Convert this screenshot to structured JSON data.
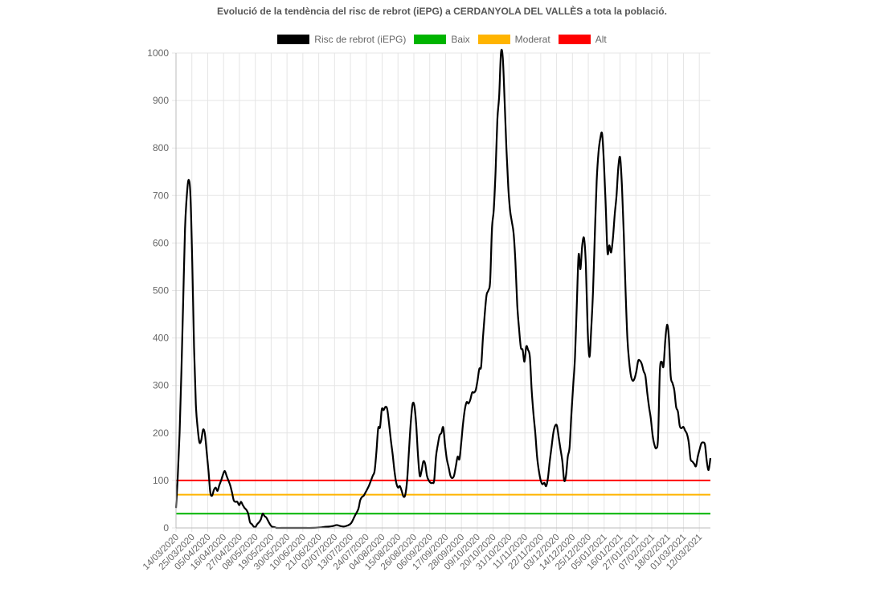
{
  "chart_data": {
    "type": "line",
    "title": "Evolució de la tendència del risc de rebrot (iEPG) a CERDANYOLA DEL VALLÈS a tota la població.",
    "ylim": [
      0,
      1000
    ],
    "yticks": [
      "0",
      "100",
      "200",
      "300",
      "400",
      "500",
      "600",
      "700",
      "800",
      "900",
      "1000"
    ],
    "x_labels": [
      "14/03/2020",
      "25/03/2020",
      "05/04/2020",
      "16/04/2020",
      "27/04/2020",
      "08/05/2020",
      "19/05/2020",
      "30/05/2020",
      "10/06/2020",
      "21/06/2020",
      "02/07/2020",
      "13/07/2020",
      "24/07/2020",
      "04/08/2020",
      "15/08/2020",
      "26/08/2020",
      "06/09/2020",
      "17/09/2020",
      "28/09/2020",
      "09/10/2020",
      "20/10/2020",
      "31/10/2020",
      "11/11/2020",
      "22/11/2020",
      "03/12/2020",
      "14/12/2020",
      "25/12/2020",
      "05/01/2021",
      "16/01/2021",
      "27/01/2021",
      "07/02/2021",
      "18/02/2021",
      "01/03/2021",
      "12/03/2021"
    ],
    "grid": true,
    "legend_position": "top",
    "series": [
      {
        "name": "Risc de rebrot (iEPG)",
        "color": "#000000",
        "values": [
          [
            0,
            42
          ],
          [
            1,
            110
          ],
          [
            2,
            200
          ],
          [
            3,
            330
          ],
          [
            4,
            480
          ],
          [
            5,
            630
          ],
          [
            6,
            700
          ],
          [
            7,
            733
          ],
          [
            8,
            700
          ],
          [
            9,
            560
          ],
          [
            10,
            380
          ],
          [
            11,
            260
          ],
          [
            12,
            210
          ],
          [
            13,
            180
          ],
          [
            14,
            185
          ],
          [
            15,
            207
          ],
          [
            16,
            198
          ],
          [
            17,
            160
          ],
          [
            18,
            120
          ],
          [
            19,
            75
          ],
          [
            20,
            68
          ],
          [
            21,
            80
          ],
          [
            22,
            85
          ],
          [
            23,
            78
          ],
          [
            24,
            90
          ],
          [
            25,
            100
          ],
          [
            26,
            112
          ],
          [
            27,
            120
          ],
          [
            28,
            110
          ],
          [
            29,
            100
          ],
          [
            30,
            90
          ],
          [
            31,
            75
          ],
          [
            32,
            58
          ],
          [
            33,
            55
          ],
          [
            34,
            55
          ],
          [
            35,
            48
          ],
          [
            36,
            55
          ],
          [
            37,
            48
          ],
          [
            38,
            42
          ],
          [
            39,
            38
          ],
          [
            40,
            30
          ],
          [
            41,
            12
          ],
          [
            42,
            8
          ],
          [
            43,
            3
          ],
          [
            44,
            2
          ],
          [
            45,
            8
          ],
          [
            46,
            12
          ],
          [
            47,
            18
          ],
          [
            48,
            30
          ],
          [
            49,
            25
          ],
          [
            50,
            22
          ],
          [
            51,
            15
          ],
          [
            52,
            8
          ],
          [
            53,
            3
          ],
          [
            54,
            2
          ],
          [
            55,
            1
          ],
          [
            56,
            0
          ],
          [
            60,
            0
          ],
          [
            65,
            0
          ],
          [
            70,
            0
          ],
          [
            75,
            0
          ],
          [
            80,
            1
          ],
          [
            82,
            2
          ],
          [
            85,
            3
          ],
          [
            87,
            4
          ],
          [
            89,
            6
          ],
          [
            91,
            4
          ],
          [
            93,
            3
          ],
          [
            95,
            5
          ],
          [
            97,
            10
          ],
          [
            99,
            25
          ],
          [
            101,
            40
          ],
          [
            102,
            58
          ],
          [
            103,
            65
          ],
          [
            104,
            68
          ],
          [
            105,
            75
          ],
          [
            106,
            82
          ],
          [
            107,
            90
          ],
          [
            108,
            100
          ],
          [
            109,
            110
          ],
          [
            110,
            120
          ],
          [
            111,
            160
          ],
          [
            112,
            210
          ],
          [
            113,
            212
          ],
          [
            114,
            250
          ],
          [
            115,
            248
          ],
          [
            116,
            255
          ],
          [
            117,
            250
          ],
          [
            118,
            220
          ],
          [
            119,
            185
          ],
          [
            120,
            155
          ],
          [
            121,
            120
          ],
          [
            122,
            95
          ],
          [
            123,
            85
          ],
          [
            124,
            88
          ],
          [
            125,
            78
          ],
          [
            126,
            66
          ],
          [
            127,
            70
          ],
          [
            128,
            100
          ],
          [
            129,
            160
          ],
          [
            130,
            220
          ],
          [
            131,
            260
          ],
          [
            132,
            258
          ],
          [
            133,
            220
          ],
          [
            134,
            155
          ],
          [
            135,
            110
          ],
          [
            136,
            120
          ],
          [
            137,
            140
          ],
          [
            138,
            135
          ],
          [
            139,
            110
          ],
          [
            140,
            100
          ],
          [
            141,
            95
          ],
          [
            142,
            95
          ],
          [
            143,
            100
          ],
          [
            144,
            150
          ],
          [
            145,
            175
          ],
          [
            146,
            195
          ],
          [
            147,
            200
          ],
          [
            148,
            212
          ],
          [
            149,
            175
          ],
          [
            150,
            145
          ],
          [
            151,
            128
          ],
          [
            152,
            110
          ],
          [
            153,
            105
          ],
          [
            154,
            110
          ],
          [
            155,
            130
          ],
          [
            156,
            150
          ],
          [
            157,
            145
          ],
          [
            158,
            180
          ],
          [
            159,
            220
          ],
          [
            160,
            250
          ],
          [
            161,
            265
          ],
          [
            162,
            262
          ],
          [
            163,
            270
          ],
          [
            164,
            285
          ],
          [
            165,
            285
          ],
          [
            166,
            290
          ],
          [
            167,
            310
          ],
          [
            168,
            335
          ],
          [
            169,
            340
          ],
          [
            170,
            400
          ],
          [
            171,
            450
          ],
          [
            172,
            490
          ],
          [
            173,
            500
          ],
          [
            174,
            520
          ],
          [
            175,
            630
          ],
          [
            176,
            670
          ],
          [
            177,
            750
          ],
          [
            178,
            860
          ],
          [
            179,
            910
          ],
          [
            180,
            1000
          ],
          [
            181,
            990
          ],
          [
            182,
            900
          ],
          [
            183,
            800
          ],
          [
            184,
            720
          ],
          [
            185,
            670
          ],
          [
            186,
            645
          ],
          [
            187,
            620
          ],
          [
            188,
            560
          ],
          [
            189,
            470
          ],
          [
            190,
            420
          ],
          [
            191,
            380
          ],
          [
            192,
            375
          ],
          [
            193,
            350
          ],
          [
            194,
            382
          ],
          [
            195,
            375
          ],
          [
            196,
            360
          ],
          [
            197,
            290
          ],
          [
            198,
            240
          ],
          [
            199,
            200
          ],
          [
            200,
            150
          ],
          [
            201,
            120
          ],
          [
            202,
            100
          ],
          [
            203,
            92
          ],
          [
            204,
            95
          ],
          [
            205,
            88
          ],
          [
            206,
            105
          ],
          [
            207,
            140
          ],
          [
            208,
            170
          ],
          [
            209,
            200
          ],
          [
            210,
            215
          ],
          [
            211,
            215
          ],
          [
            212,
            190
          ],
          [
            213,
            165
          ],
          [
            214,
            140
          ],
          [
            215,
            100
          ],
          [
            216,
            110
          ],
          [
            217,
            150
          ],
          [
            218,
            170
          ],
          [
            219,
            240
          ],
          [
            220,
            300
          ],
          [
            221,
            360
          ],
          [
            222,
            470
          ],
          [
            223,
            575
          ],
          [
            224,
            545
          ],
          [
            225,
            595
          ],
          [
            226,
            610
          ],
          [
            227,
            555
          ],
          [
            228,
            420
          ],
          [
            229,
            360
          ],
          [
            230,
            420
          ],
          [
            231,
            500
          ],
          [
            232,
            620
          ],
          [
            233,
            730
          ],
          [
            234,
            790
          ],
          [
            235,
            820
          ],
          [
            236,
            830
          ],
          [
            237,
            770
          ],
          [
            238,
            680
          ],
          [
            239,
            580
          ],
          [
            240,
            595
          ],
          [
            241,
            580
          ],
          [
            242,
            610
          ],
          [
            243,
            660
          ],
          [
            244,
            700
          ],
          [
            245,
            760
          ],
          [
            246,
            780
          ],
          [
            247,
            720
          ],
          [
            248,
            620
          ],
          [
            249,
            500
          ],
          [
            250,
            400
          ],
          [
            251,
            350
          ],
          [
            252,
            320
          ],
          [
            253,
            310
          ],
          [
            254,
            315
          ],
          [
            255,
            330
          ],
          [
            256,
            352
          ],
          [
            257,
            352
          ],
          [
            258,
            345
          ],
          [
            259,
            330
          ],
          [
            260,
            320
          ],
          [
            261,
            285
          ],
          [
            262,
            255
          ],
          [
            263,
            230
          ],
          [
            264,
            195
          ],
          [
            265,
            175
          ],
          [
            266,
            168
          ],
          [
            267,
            190
          ],
          [
            268,
            330
          ],
          [
            269,
            350
          ],
          [
            270,
            340
          ],
          [
            271,
            395
          ],
          [
            272,
            428
          ],
          [
            273,
            400
          ],
          [
            274,
            320
          ],
          [
            275,
            305
          ],
          [
            276,
            290
          ],
          [
            277,
            255
          ],
          [
            278,
            245
          ],
          [
            279,
            215
          ],
          [
            280,
            210
          ],
          [
            281,
            213
          ],
          [
            282,
            205
          ],
          [
            283,
            198
          ],
          [
            284,
            180
          ],
          [
            285,
            145
          ],
          [
            286,
            140
          ],
          [
            287,
            135
          ],
          [
            288,
            130
          ],
          [
            289,
            150
          ],
          [
            290,
            165
          ],
          [
            291,
            178
          ],
          [
            292,
            180
          ],
          [
            293,
            175
          ],
          [
            294,
            140
          ],
          [
            295,
            122
          ],
          [
            296,
            147
          ]
        ]
      },
      {
        "name": "Baix",
        "color": "#00b400",
        "constant": 30
      },
      {
        "name": "Moderat",
        "color": "#ffb400",
        "constant": 70
      },
      {
        "name": "Alt",
        "color": "#ff0000",
        "constant": 100
      }
    ]
  }
}
